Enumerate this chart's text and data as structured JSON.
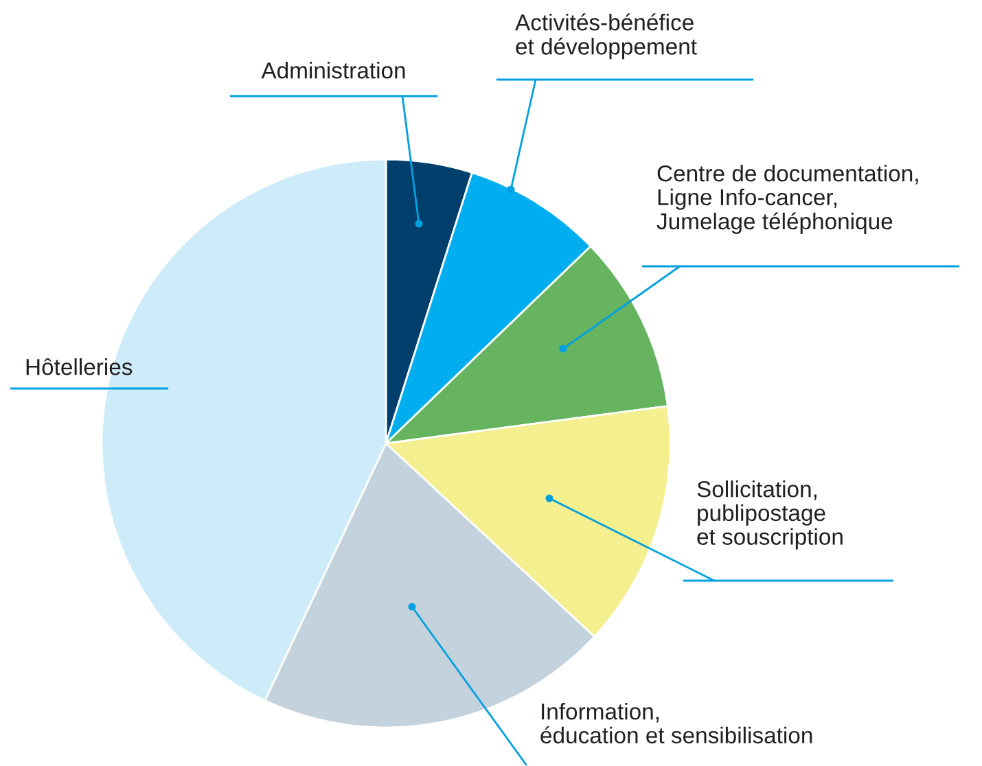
{
  "chart_data": {
    "type": "pie",
    "categories": [
      "Administration",
      "Activités-bénéfice\net développement",
      "Centre de documentation,\nLigne Info-cancer,\nJumelage téléphonique",
      "Sollicitation,\npublipostage\net souscription",
      "Information,\néducation et sensibilisation",
      "Hôtelleries"
    ],
    "values": [
      4.9,
      7.9,
      10.1,
      14.0,
      20.1,
      43.0
    ],
    "colors": [
      "#003f6b",
      "#00aeef",
      "#66b45f",
      "#f4ef8f",
      "#c3d2dc",
      "#cdebf8"
    ],
    "legend": false
  }
}
